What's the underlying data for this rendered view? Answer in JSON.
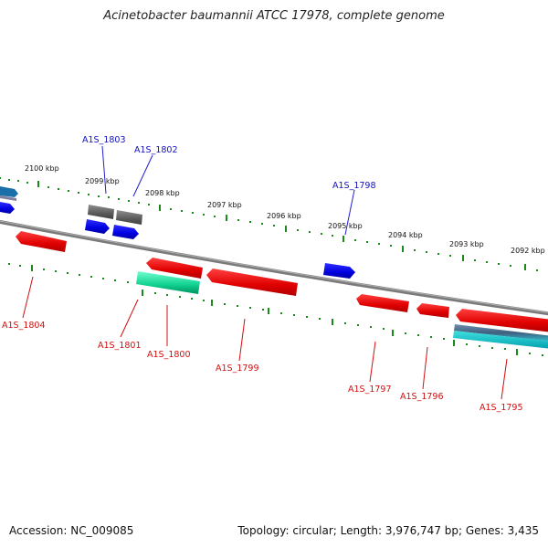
{
  "title": "Acinetobacter baumannii ATCC 17978, complete genome",
  "footer": {
    "accession": "Accession: NC_009085",
    "summary": "Topology: circular; Length: 3,976,747 bp; Genes: 3,435"
  },
  "colors": {
    "forward_gene": "#1010e0",
    "reverse_gene": "#e01010",
    "pseudo_gene": "#606060",
    "rna_gene": "#20d0a0",
    "backbone": "#808080",
    "tick": "#208020",
    "forward_label": "#1010c0",
    "reverse_label": "#d01010"
  },
  "kbp_labels": [
    "2100 kbp",
    "2099 kbp",
    "2098 kbp",
    "2097 kbp",
    "2096 kbp",
    "2095 kbp",
    "2094 kbp",
    "2093 kbp",
    "2092 kbp"
  ],
  "gene_labels": {
    "forward": [
      "A1S_1803",
      "A1S_1802",
      "A1S_1798"
    ],
    "reverse": [
      "A1S_1804",
      "A1S_1801",
      "A1S_1800",
      "A1S_1799",
      "A1S_1797",
      "A1S_1796",
      "A1S_1795"
    ]
  }
}
